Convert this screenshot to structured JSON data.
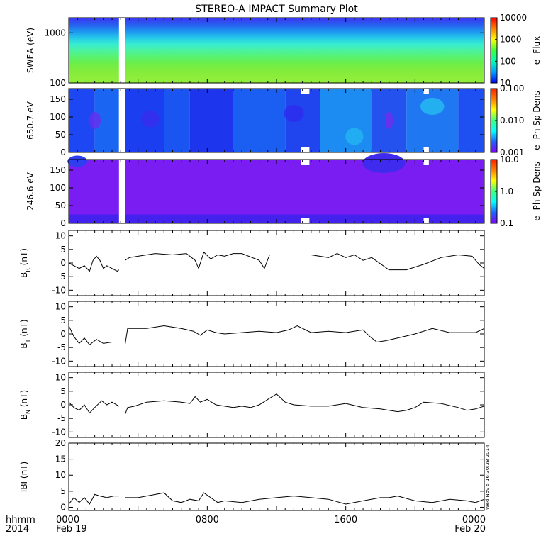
{
  "title": "STEREO-A IMPACT Summary Plot",
  "colors": {
    "axis": "#000000",
    "line": "#000000",
    "gap": "#ffffff",
    "background": "#ffffff"
  },
  "time_axis": {
    "label_top": "hhmm",
    "label_bottom": "2014",
    "ticks": [
      {
        "hhmm": "0000",
        "date": "Feb 19",
        "hours": 0
      },
      {
        "hhmm": "0800",
        "date": "",
        "hours": 8
      },
      {
        "hhmm": "1600",
        "date": "",
        "hours": 16
      },
      {
        "hhmm": "0000",
        "date": "Feb 20",
        "hours": 24
      }
    ],
    "range_hours": [
      0,
      24
    ]
  },
  "timestamp": "Wed Nov 5 16:30:38 2014",
  "chart_data": [
    {
      "id": "swea",
      "type": "heatmap",
      "ylabel": "SWEA (eV)",
      "ylog": true,
      "ylim": [
        100,
        2000
      ],
      "yticks": [
        "1000",
        "100"
      ],
      "ytick_values": [
        1000,
        100
      ],
      "colorbar": {
        "label": "e- Flux",
        "ticks": [
          "10000",
          "1000",
          "100",
          "10"
        ],
        "scale": "log",
        "range": [
          10,
          10000
        ],
        "bottom": "#0000ff"
      },
      "data_gaps_hours": [
        [
          2.9,
          3.25
        ]
      ],
      "rows": [
        {
          "y": 2000,
          "color": "#3c35f2"
        },
        {
          "y": 1500,
          "color": "#2a5cf0"
        },
        {
          "y": 1100,
          "color": "#1d8ff0"
        },
        {
          "y": 800,
          "color": "#23c4ea"
        },
        {
          "y": 600,
          "color": "#36ecd3"
        },
        {
          "y": 450,
          "color": "#4af2a2"
        },
        {
          "y": 330,
          "color": "#59f270"
        },
        {
          "y": 240,
          "color": "#6cee48"
        },
        {
          "y": 170,
          "color": "#80ec3d"
        },
        {
          "y": 130,
          "color": "#8ced3a"
        },
        {
          "y": 100,
          "color": "#90ee3c"
        }
      ]
    },
    {
      "id": "pad650",
      "type": "heatmap",
      "ylabel": "650.7 eV",
      "ylim": [
        0,
        180
      ],
      "yticks": [
        "150",
        "100",
        "50",
        "0"
      ],
      "ytick_values": [
        150,
        100,
        50,
        0
      ],
      "colorbar": {
        "label": "e- Ph Sp Dens",
        "ticks": [
          "0.100",
          "0.010",
          "0.001"
        ],
        "scale": "log",
        "range": [
          0.001,
          0.1
        ]
      },
      "data_gaps_hours": [
        [
          2.9,
          3.25
        ]
      ],
      "notches_hours": [
        [
          13.4,
          13.9
        ],
        [
          20.5,
          20.8
        ]
      ],
      "bands": [
        {
          "t0": 0,
          "t1": 1.5,
          "color": "#1d47f2"
        },
        {
          "t0": 1.5,
          "t1": 2.9,
          "color": "#1a66f3"
        },
        {
          "t0": 3.25,
          "t1": 5.5,
          "color": "#1c3ef1"
        },
        {
          "t0": 5.5,
          "t1": 7.0,
          "color": "#1a55f2"
        },
        {
          "t0": 7.0,
          "t1": 9.5,
          "color": "#1e35ee"
        },
        {
          "t0": 9.5,
          "t1": 12.5,
          "color": "#1b5ef2"
        },
        {
          "t0": 12.5,
          "t1": 14.5,
          "color": "#2045ee"
        },
        {
          "t0": 14.5,
          "t1": 17.5,
          "color": "#1c8cf2"
        },
        {
          "t0": 17.5,
          "t1": 19.5,
          "color": "#2352ef"
        },
        {
          "t0": 19.5,
          "t1": 22.5,
          "color": "#1f78f2"
        },
        {
          "t0": 22.5,
          "t1": 24,
          "color": "#1d4ff1"
        }
      ]
    },
    {
      "id": "pad246",
      "type": "heatmap",
      "ylabel": "246.6 eV",
      "ylim": [
        0,
        180
      ],
      "yticks": [
        "150",
        "100",
        "50",
        "0"
      ],
      "ytick_values": [
        150,
        100,
        50,
        0
      ],
      "colorbar": {
        "label": "e- Ph Sp Dens",
        "ticks": [
          "10.0",
          "1.0",
          "0.1"
        ],
        "scale": "log",
        "range": [
          0.1,
          10
        ]
      },
      "data_gaps_hours": [
        [
          2.9,
          3.25
        ]
      ],
      "notches_hours": [
        [
          13.4,
          13.9
        ],
        [
          20.5,
          20.8
        ]
      ],
      "base_color": "#7a1df2",
      "low_band_color": "#4422ee"
    },
    {
      "id": "br",
      "type": "line",
      "ylabel": "BR (nT)",
      "ylabel_main": "B",
      "ylabel_sub": "R",
      "ylabel_unit": "(nT)",
      "ylim": [
        -12,
        12
      ],
      "yticks": [
        "10",
        "5",
        "0",
        "-5",
        "-10"
      ],
      "ytick_values": [
        10,
        5,
        0,
        -5,
        -10
      ],
      "x": [
        0,
        0.3,
        0.6,
        0.9,
        1.2,
        1.4,
        1.6,
        1.8,
        2.0,
        2.2,
        2.5,
        2.8,
        2.9,
        3.25,
        3.5,
        4,
        5,
        6,
        6.8,
        7.3,
        7.5,
        7.8,
        8.2,
        8.6,
        9.0,
        9.5,
        10.0,
        11.0,
        11.3,
        11.6,
        12.0,
        13.0,
        14.0,
        15.0,
        15.5,
        16.0,
        16.5,
        17.0,
        17.5,
        18.5,
        19.5,
        20.5,
        21.5,
        22.5,
        23.3,
        23.7,
        24
      ],
      "y": [
        0,
        -1,
        -2,
        -1,
        -3,
        1,
        2.5,
        1,
        -2,
        -1,
        -2,
        -3,
        -2.5,
        1,
        2,
        2.5,
        3.5,
        3,
        3.5,
        1,
        -2,
        4,
        1.5,
        3,
        2.5,
        3.5,
        3.5,
        1,
        -2,
        3,
        3,
        3,
        3,
        2,
        3.5,
        2,
        3,
        1,
        2,
        -2.5,
        -2.5,
        -0.5,
        2,
        3,
        2.5,
        -0.5,
        -2
      ]
    },
    {
      "id": "bt",
      "type": "line",
      "ylabel": "BT (nT)",
      "ylabel_main": "B",
      "ylabel_sub": "T",
      "ylabel_unit": "(nT)",
      "ylim": [
        -12,
        12
      ],
      "yticks": [
        "10",
        "5",
        "0",
        "-5",
        "-10"
      ],
      "ytick_values": [
        10,
        5,
        0,
        -5,
        -10
      ],
      "x": [
        0,
        0.3,
        0.6,
        0.9,
        1.2,
        1.6,
        2.0,
        2.5,
        2.9,
        3.25,
        3.4,
        3.6,
        4.5,
        5.5,
        6.5,
        7.2,
        7.6,
        8.0,
        8.5,
        9.0,
        10.0,
        11.0,
        12.0,
        12.7,
        13.2,
        14.0,
        15.0,
        16.0,
        17.0,
        17.4,
        17.8,
        18.3,
        19.0,
        20.0,
        21.0,
        22.0,
        23.0,
        23.5,
        24
      ],
      "y": [
        3,
        -1,
        -3.5,
        -1.5,
        -4,
        -2,
        -3.5,
        -3,
        -3,
        -4,
        2,
        2,
        2,
        3,
        2,
        1,
        -0.5,
        1.5,
        0.5,
        0,
        0.5,
        1,
        0.5,
        1.5,
        3,
        0.5,
        1,
        0.5,
        1.5,
        -1,
        -3,
        -2.5,
        -1.5,
        0,
        2,
        0.5,
        0.5,
        0.5,
        2
      ]
    },
    {
      "id": "bn",
      "type": "line",
      "ylabel": "BN (nT)",
      "ylabel_main": "B",
      "ylabel_sub": "N",
      "ylabel_unit": "(nT)",
      "ylim": [
        -12,
        12
      ],
      "yticks": [
        "10",
        "5",
        "0",
        "-5",
        "-10"
      ],
      "ytick_values": [
        10,
        5,
        0,
        -5,
        -10
      ],
      "x": [
        0,
        0.3,
        0.6,
        0.9,
        1.2,
        1.5,
        1.9,
        2.2,
        2.5,
        2.9,
        3.25,
        3.4,
        3.8,
        4.5,
        5.5,
        6.5,
        7.0,
        7.3,
        7.6,
        8.0,
        8.5,
        9.0,
        9.5,
        10.0,
        10.5,
        11.0,
        11.5,
        12.0,
        12.5,
        13.0,
        14.0,
        15.0,
        16.0,
        17.0,
        18.0,
        18.5,
        19.0,
        19.5,
        20.0,
        20.5,
        21.5,
        22.5,
        23.0,
        23.5,
        24
      ],
      "y": [
        1,
        -1,
        -2,
        0,
        -3,
        -1,
        1.5,
        0,
        1,
        -0.5,
        -3.5,
        -1,
        -0.5,
        1,
        1.5,
        1,
        0.5,
        3,
        1,
        2,
        0,
        -0.5,
        -1,
        -0.5,
        -1,
        0,
        2,
        4,
        1,
        0,
        -0.5,
        -0.5,
        0.5,
        -1,
        -1.5,
        -2,
        -2.5,
        -2,
        -1,
        1,
        0.5,
        -1,
        -2,
        -1.5,
        -0.5
      ]
    },
    {
      "id": "bmag",
      "type": "line",
      "ylabel": "|B| (nT)",
      "ylabel_main": "IBI",
      "ylabel_sub": "",
      "ylabel_unit": "(nT)",
      "ylim": [
        -1,
        20
      ],
      "yticks": [
        "20",
        "15",
        "10",
        "5",
        "0"
      ],
      "ytick_values": [
        20,
        15,
        10,
        5,
        0
      ],
      "x": [
        0,
        0.3,
        0.6,
        0.9,
        1.2,
        1.5,
        1.8,
        2.2,
        2.6,
        2.9,
        3.25,
        4.0,
        5.0,
        5.5,
        6.0,
        6.5,
        7.0,
        7.5,
        7.8,
        8.2,
        8.6,
        9.0,
        10.0,
        11.0,
        12.0,
        13.0,
        14.0,
        15.0,
        16.0,
        17.0,
        18.0,
        18.5,
        19.0,
        20.0,
        21.0,
        22.0,
        23.0,
        23.5,
        24
      ],
      "y": [
        1,
        3,
        1.5,
        3,
        1,
        4,
        3.5,
        3,
        3.5,
        3.5,
        3,
        3,
        4,
        4.5,
        2,
        1.5,
        2.5,
        2,
        4.5,
        3,
        1.5,
        2,
        1.5,
        2.5,
        3,
        3.5,
        3,
        2.5,
        1,
        2,
        3,
        3,
        3.5,
        2,
        1.5,
        2.5,
        2,
        1.5,
        2.5
      ]
    }
  ]
}
